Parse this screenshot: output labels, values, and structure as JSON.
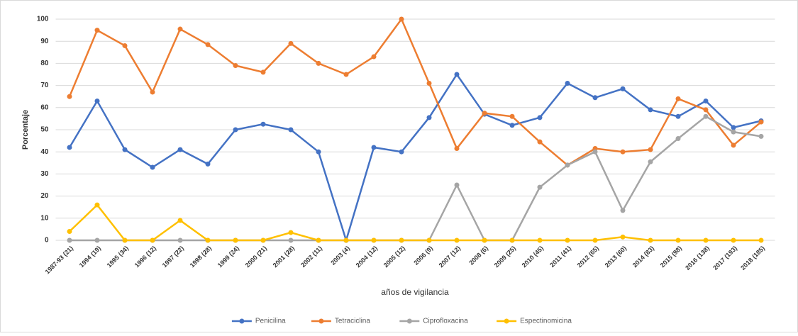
{
  "chart_data": {
    "type": "line",
    "x_label": "años de vigilancia",
    "y_label": "Porcentaje",
    "categories": [
      "1987-93 (21)",
      "1994 (19)",
      "1995 (34)",
      "1996 (12)",
      "1997 (22)",
      "1998 (28)",
      "1999 (24)",
      "2000 (21)",
      "2001 (28)",
      "2002 (11)",
      "2003   (4)",
      "2004 (12)",
      "2005 (12)",
      "2006   (9)",
      "2007 (12)",
      "2008   (6)",
      "2009 (25)",
      "2010 (45)",
      "2011 (41)",
      "2012 (65)",
      "2013 (60)",
      "2014 (83)",
      "2015 (98)",
      "2016 (138)",
      "2017 (193)",
      "2018 (185)"
    ],
    "series": [
      {
        "name": "Penicilina",
        "color": "#4472c4",
        "values": [
          42,
          63,
          41,
          33,
          41,
          34.5,
          50,
          52.5,
          50,
          40,
          0,
          42,
          40,
          55.5,
          75,
          57,
          52,
          55.5,
          71,
          64.5,
          68.5,
          59,
          56,
          63,
          51,
          54
        ]
      },
      {
        "name": "Tetraciclina",
        "color": "#ed7d31",
        "values": [
          65,
          95,
          88,
          67,
          95.5,
          88.5,
          79,
          76,
          89,
          80,
          75,
          83,
          100,
          71,
          41.5,
          57.5,
          56,
          44.5,
          34,
          41.5,
          40,
          41,
          64,
          59,
          43,
          53.5
        ]
      },
      {
        "name": "Ciprofloxacina",
        "color": "#a5a5a5",
        "values": [
          0,
          0,
          0,
          0,
          0,
          0,
          0,
          0,
          0,
          0,
          0,
          0,
          0,
          0,
          25,
          0,
          0,
          24,
          34,
          40,
          13.5,
          35.5,
          46,
          56,
          49,
          47
        ]
      },
      {
        "name": "Espectinomicina",
        "color": "#ffc000",
        "values": [
          4,
          16,
          0,
          0,
          9,
          0,
          0,
          0,
          3.5,
          0,
          0,
          0,
          0,
          0,
          0,
          0,
          0,
          0,
          0,
          0,
          1.5,
          0,
          0,
          0,
          0,
          0
        ]
      }
    ],
    "ylim": [
      0,
      100
    ],
    "yticks": [
      0,
      10,
      20,
      30,
      40,
      50,
      60,
      70,
      80,
      90,
      100
    ],
    "grid": true,
    "legend": "bottom"
  }
}
